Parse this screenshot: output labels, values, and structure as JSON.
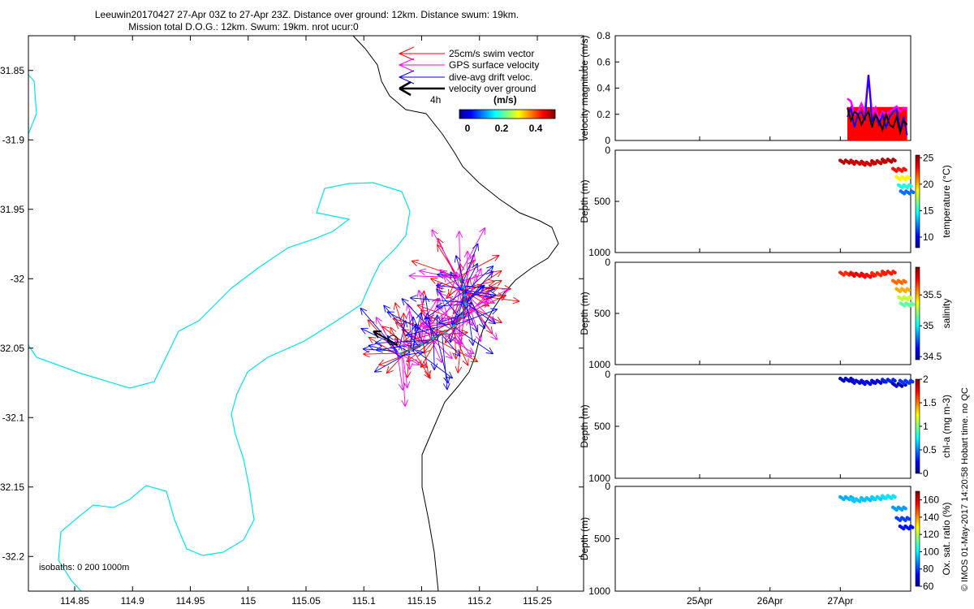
{
  "title": {
    "line1": "Leeuwin20170427 27-Apr 03Z to 27-Apr 23Z. Distance over ground: 12km. Distance swum: 19km.",
    "line2": "Mission total D.O.G.: 12km. Swum: 19km. nrot ucur:0"
  },
  "side_note": "© IMOS 01-May-2017 14:20:58 Hobart time. no QC",
  "colors": {
    "swim": "#ff0000",
    "gps": "#ff00ff",
    "drift": "#0000ff",
    "ground": "#000000",
    "coast": "#00e5ee",
    "isobath": "#000000"
  },
  "chart_data": [
    {
      "type": "scatter",
      "panel": "map",
      "xlim": [
        114.81,
        115.29
      ],
      "ylim": [
        -32.225,
        -31.825
      ],
      "xticks": [
        "114.85",
        "114.9",
        "114.95",
        "115",
        "115.05",
        "115.1",
        "115.15",
        "115.2",
        "115.25"
      ],
      "yticks": [
        "-31.85",
        "-31.9",
        "-31.95",
        "-32",
        "-32.05",
        "-32.1",
        "-32.15",
        "-32.2"
      ],
      "legend": {
        "position": "top-right",
        "entries": [
          "25cm/s swim vector",
          "GPS surface velocity",
          "dive-avg drift veloc.",
          "velocity over ground"
        ],
        "scale_label": "4h"
      },
      "colorbar": {
        "label": "(m/s)",
        "ticks": [
          "0",
          "0.2",
          "0.4"
        ],
        "range": [
          0,
          0.5
        ]
      },
      "isobath_note": "isobaths: 0   200  1000m",
      "glider_track": {
        "lon": [
          115.183,
          115.186,
          115.187,
          115.188,
          115.185,
          115.178,
          115.17,
          115.16,
          115.15,
          115.14,
          115.132
        ],
        "lat": [
          -32.0,
          -32.006,
          -32.012,
          -32.018,
          -32.027,
          -32.034,
          -32.039,
          -32.043,
          -32.047,
          -32.051,
          -32.054
        ]
      }
    },
    {
      "type": "line",
      "panel": "velocity",
      "ylabel": "velocity magnitude (m/s)",
      "ylim": [
        0,
        0.8
      ],
      "yticks": [
        "0",
        "0.2",
        "0.4",
        "0.6",
        "0.8"
      ],
      "xlim": [
        23.8,
        28.0
      ],
      "series": [
        {
          "color": "swim",
          "x": [
            27.1,
            27.95
          ],
          "y": [
            0.25,
            0.25
          ]
        },
        {
          "color": "gps",
          "x": [
            27.1,
            27.15,
            27.2,
            27.25,
            27.3,
            27.35,
            27.4,
            27.45,
            27.5,
            27.55,
            27.6,
            27.65,
            27.7,
            27.75,
            27.8,
            27.85,
            27.9,
            27.95
          ],
          "y": [
            0.32,
            0.3,
            0.2,
            0.22,
            0.28,
            0.22,
            0.5,
            0.2,
            0.25,
            0.15,
            0.22,
            0.2,
            0.22,
            0.24,
            0.26,
            0.22,
            0.25,
            0.24
          ]
        },
        {
          "color": "drift",
          "x": [
            27.1,
            27.15,
            27.2,
            27.25,
            27.3,
            27.35,
            27.4,
            27.45,
            27.5,
            27.55,
            27.6,
            27.65,
            27.7,
            27.75,
            27.8,
            27.85,
            27.9,
            27.95
          ],
          "y": [
            0.18,
            0.25,
            0.1,
            0.2,
            0.22,
            0.15,
            0.5,
            0.15,
            0.2,
            0.12,
            0.2,
            0.1,
            0.18,
            0.22,
            0.24,
            0.08,
            0.18,
            0.04
          ]
        },
        {
          "color": "ground",
          "x": [
            27.1,
            27.15,
            27.2,
            27.25,
            27.3,
            27.35,
            27.4,
            27.45,
            27.5,
            27.55,
            27.6,
            27.65,
            27.7,
            27.75,
            27.8,
            27.85,
            27.9,
            27.95
          ],
          "y": [
            0.25,
            0.15,
            0.22,
            0.2,
            0.12,
            0.18,
            0.22,
            0.1,
            0.2,
            0.15,
            0.08,
            0.2,
            0.12,
            0.1,
            0.18,
            0.06,
            0.15,
            0.12
          ]
        }
      ]
    },
    {
      "type": "scatter",
      "panel": "temperature",
      "ylabel": "Depth (m)",
      "ylim": [
        1000,
        0
      ],
      "yticks": [
        "0",
        "500",
        "1000"
      ],
      "colorbar": {
        "label": "temperature (°C)",
        "ticks": [
          "10",
          "15",
          "20",
          "25"
        ],
        "range": [
          8,
          25.5
        ]
      },
      "x": [
        27.1,
        27.25,
        27.4,
        27.55,
        27.7,
        27.85,
        27.9,
        27.93,
        27.96
      ],
      "depth": [
        100,
        110,
        120,
        105,
        90,
        180,
        260,
        340,
        400
      ],
      "value": [
        24.5,
        24.2,
        24.0,
        24.3,
        24.5,
        23.0,
        19.0,
        15.0,
        12.0
      ]
    },
    {
      "type": "scatter",
      "panel": "salinity",
      "ylabel": "Depth (m)",
      "ylim": [
        1000,
        0
      ],
      "yticks": [
        "0",
        "500",
        "1000"
      ],
      "colorbar": {
        "label": "salinity",
        "ticks": [
          "34.5",
          "35",
          "35.5"
        ],
        "range": [
          34.45,
          35.95
        ]
      },
      "x": [
        27.1,
        27.25,
        27.4,
        27.55,
        27.7,
        27.85,
        27.9,
        27.93,
        27.96
      ],
      "depth": [
        100,
        110,
        120,
        105,
        90,
        180,
        260,
        340,
        400
      ],
      "value": [
        35.7,
        35.8,
        35.75,
        35.7,
        35.72,
        35.6,
        35.5,
        35.3,
        35.15
      ]
    },
    {
      "type": "scatter",
      "panel": "chl-a",
      "ylabel": "Depth (m)",
      "ylim": [
        1000,
        0
      ],
      "yticks": [
        "0",
        "500",
        "1000"
      ],
      "colorbar": {
        "label": "chl-a (mg m-3)",
        "ticks": [
          "0",
          "0.5",
          "1",
          "1.5",
          "2"
        ],
        "range": [
          0,
          2
        ]
      },
      "x": [
        27.1,
        27.25,
        27.4,
        27.55,
        27.7,
        27.85,
        27.95
      ],
      "depth": [
        40,
        60,
        70,
        60,
        50,
        90,
        60
      ],
      "value": [
        0.1,
        0.15,
        0.2,
        0.15,
        0.3,
        0.1,
        0.35
      ]
    },
    {
      "type": "scatter",
      "panel": "oxygen",
      "ylabel": "Depth (m)",
      "ylim": [
        1000,
        0
      ],
      "yticks": [
        "0",
        "500",
        "1000"
      ],
      "xticks": [
        "25Apr",
        "26Apr",
        "27Apr"
      ],
      "xlim": [
        23.8,
        28.0
      ],
      "colorbar": {
        "label": "Ox. sat. ratio (%)",
        "ticks": [
          "60",
          "80",
          "100",
          "120",
          "140",
          "160"
        ],
        "range": [
          60,
          170
        ]
      },
      "x": [
        27.1,
        27.25,
        27.4,
        27.55,
        27.7,
        27.85,
        27.9,
        27.95
      ],
      "depth": [
        100,
        120,
        110,
        100,
        90,
        200,
        300,
        380
      ],
      "value": [
        92,
        95,
        94,
        96,
        98,
        90,
        80,
        75
      ]
    }
  ]
}
